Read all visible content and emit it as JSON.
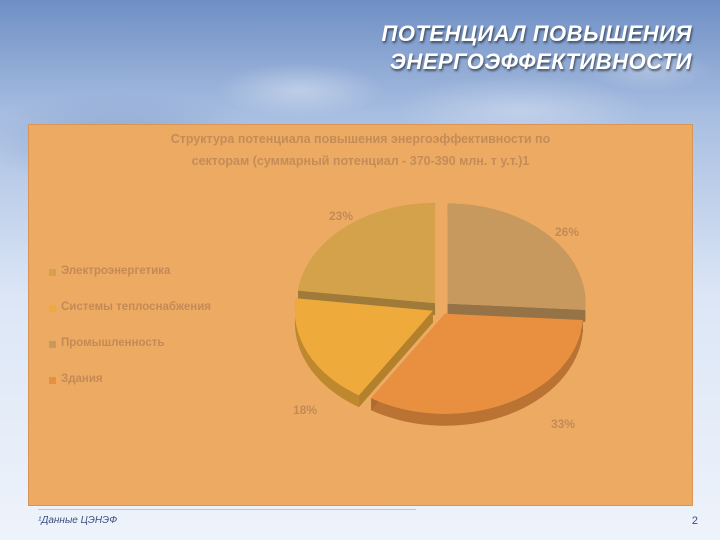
{
  "slide": {
    "title_line1": "ПОТЕНЦИАЛ ПОВЫШЕНИЯ",
    "title_line2": "ЭНЕРГОЭФФЕКТИВНОСТИ",
    "footnote": "¹Данные ЦЭНЭФ",
    "page_number": "2"
  },
  "chart_data": {
    "type": "pie",
    "title_line1": "Структура потенциала повышения энергоэффективности по",
    "title_line2": "секторам (суммарный потенциал - 370-390 млн. т у.т.)1",
    "legend_position": "left",
    "categories": [
      "Электроэнергетика",
      "Системы теплоснабжения",
      "Промышленность",
      "Здания"
    ],
    "values": [
      23,
      18,
      26,
      33
    ],
    "value_labels": [
      "23%",
      "18%",
      "26%",
      "33%"
    ],
    "colors": [
      "#d4a24a",
      "#eeaa3b",
      "#c7995e",
      "#e8903f"
    ]
  }
}
